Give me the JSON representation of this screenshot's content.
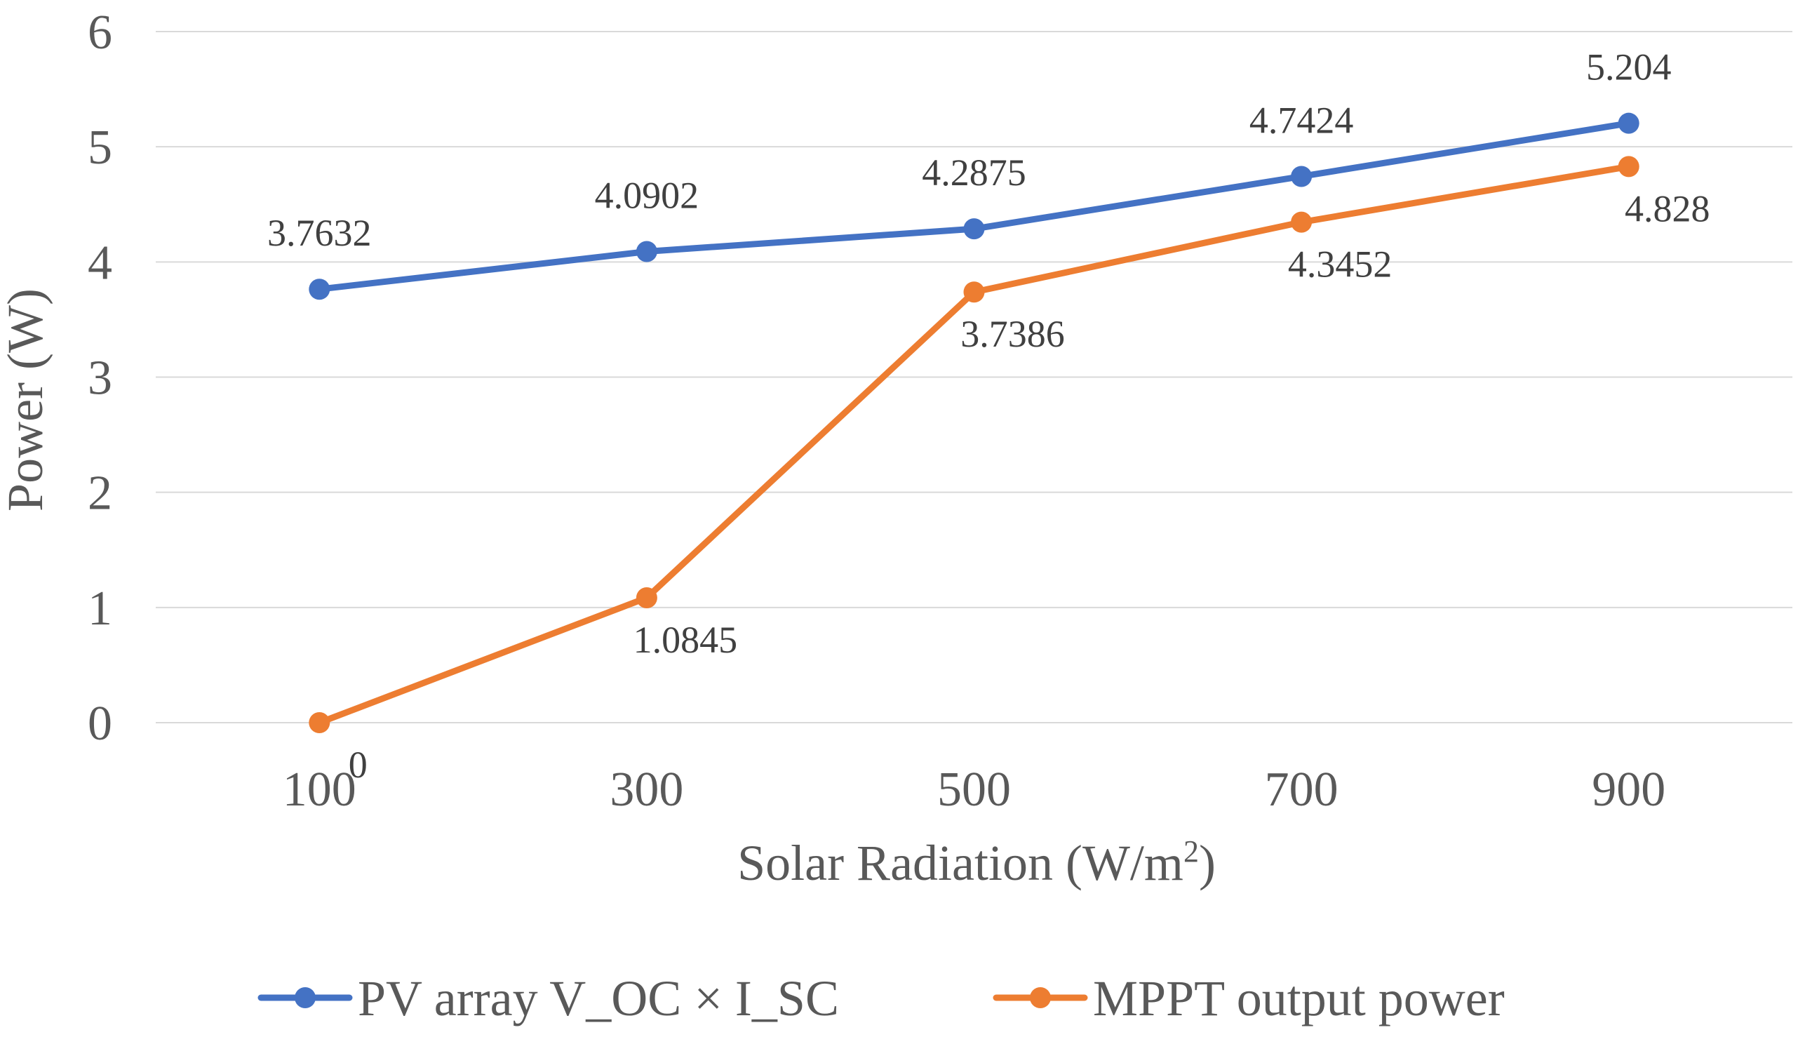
{
  "chart_data": {
    "type": "line",
    "title": "",
    "xlabel": "Solar Radiation (W/m",
    "xlabel_superscript": "2",
    "xlabel_suffix": ")",
    "ylabel": "Power (W)",
    "categories": [
      "100",
      "300",
      "500",
      "700",
      "900"
    ],
    "ylim": [
      0,
      6
    ],
    "yticks": [
      "0",
      "1",
      "2",
      "3",
      "4",
      "5",
      "6"
    ],
    "grid": true,
    "legend_position": "bottom",
    "series": [
      {
        "name": "PV array V_OC × I_SC",
        "color": "#4472c4",
        "values": [
          3.7632,
          4.0902,
          4.2875,
          4.7424,
          5.204
        ],
        "labels": [
          "3.7632",
          "4.0902",
          "4.2875",
          "4.7424",
          "5.204"
        ],
        "label_side": "above"
      },
      {
        "name": "MPPT output power",
        "color": "#ed7d31",
        "values": [
          0,
          1.0845,
          3.7386,
          4.3452,
          4.828
        ],
        "labels": [
          "0",
          "1.0845",
          "3.7386",
          "4.3452",
          "4.828"
        ],
        "label_side": "below"
      }
    ]
  }
}
